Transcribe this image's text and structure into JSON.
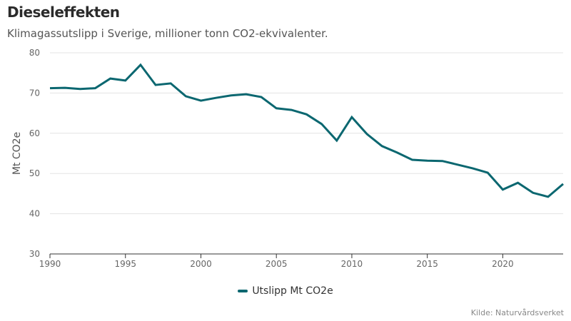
{
  "header": {
    "title": "Dieseleffekten",
    "subtitle": "Klimagassutslipp i Sverige, millioner tonn CO2-ekvivalenter."
  },
  "source": "Kilde: Naturvårdsverket",
  "colors": {
    "series": "#0b6770",
    "grid": "#e3e3e3",
    "axis": "#333333"
  },
  "chart_data": {
    "type": "line",
    "title": "Dieseleffekten",
    "subtitle": "Klimagassutslipp i Sverige, millioner tonn CO2-ekvivalenter.",
    "xlabel": "",
    "ylabel": "Mt CO2e",
    "xlim": [
      1990,
      2024
    ],
    "ylim": [
      30,
      80
    ],
    "xticks": [
      1990,
      1995,
      2000,
      2005,
      2010,
      2015,
      2020
    ],
    "yticks": [
      30,
      40,
      50,
      60,
      70,
      80
    ],
    "grid": "horizontal",
    "legend_position": "bottom-center",
    "x": [
      1990,
      1991,
      1992,
      1993,
      1994,
      1995,
      1996,
      1997,
      1998,
      1999,
      2000,
      2001,
      2002,
      2003,
      2004,
      2005,
      2006,
      2007,
      2008,
      2009,
      2010,
      2011,
      2012,
      2013,
      2014,
      2015,
      2016,
      2017,
      2018,
      2019,
      2020,
      2021,
      2022,
      2023,
      2024
    ],
    "series": [
      {
        "name": "Utslipp Mt CO2e",
        "values": [
          71.2,
          71.3,
          71.0,
          71.2,
          73.6,
          73.1,
          77.0,
          72.0,
          72.4,
          69.2,
          68.1,
          68.8,
          69.4,
          69.7,
          69.0,
          66.2,
          65.8,
          64.7,
          62.3,
          58.2,
          64.0,
          59.8,
          56.8,
          55.2,
          53.4,
          53.2,
          53.1,
          52.2,
          51.3,
          50.2,
          46.0,
          47.7,
          45.2,
          44.2,
          47.4
        ]
      }
    ]
  }
}
